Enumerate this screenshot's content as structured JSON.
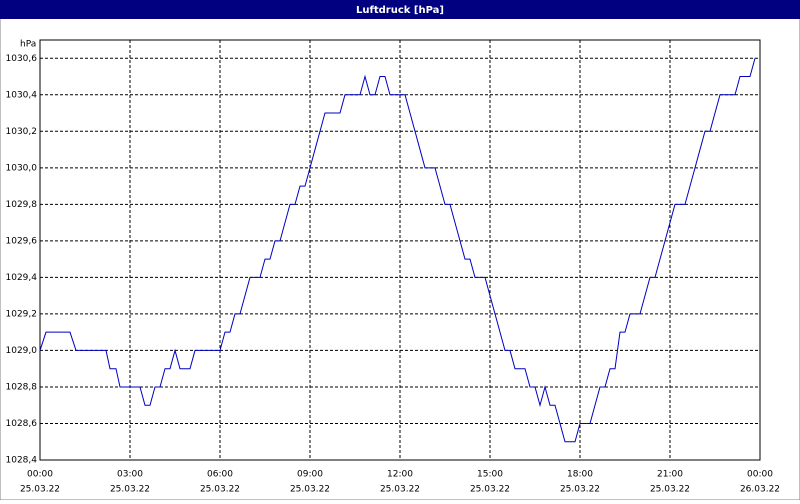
{
  "chart_data": {
    "type": "line",
    "title": "Luftdruck [hPa]",
    "y_unit": "hPa",
    "x": [
      0,
      12,
      60,
      72,
      132,
      140,
      152,
      160,
      200,
      210,
      220,
      230,
      240,
      250,
      260,
      270,
      280,
      300,
      310,
      360,
      370,
      380,
      390,
      400,
      410,
      420,
      440,
      450,
      460,
      470,
      480,
      490,
      500,
      510,
      520,
      530,
      540,
      550,
      560,
      570,
      600,
      610,
      640,
      650,
      660,
      670,
      680,
      690,
      700,
      730,
      740,
      750,
      760,
      770,
      790,
      800,
      810,
      820,
      830,
      840,
      850,
      860,
      870,
      890,
      900,
      910,
      920,
      930,
      940,
      950,
      970,
      980,
      990,
      1000,
      1010,
      1020,
      1030,
      1040,
      1050,
      1070,
      1080,
      1100,
      1110,
      1120,
      1130,
      1140,
      1150,
      1160,
      1170,
      1180,
      1200,
      1210,
      1220,
      1230,
      1240,
      1250,
      1260,
      1270,
      1290,
      1300,
      1310,
      1320,
      1330,
      1340,
      1350,
      1360,
      1390,
      1400,
      1420,
      1430
    ],
    "series": [
      {
        "name": "Luftdruck",
        "color": "#0000c0",
        "values": [
          1029.0,
          1029.1,
          1029.1,
          1029.0,
          1029.0,
          1028.9,
          1028.9,
          1028.8,
          1028.8,
          1028.7,
          1028.7,
          1028.8,
          1028.8,
          1028.9,
          1028.9,
          1029.0,
          1028.9,
          1028.9,
          1029.0,
          1029.0,
          1029.1,
          1029.1,
          1029.2,
          1029.2,
          1029.3,
          1029.4,
          1029.4,
          1029.5,
          1029.5,
          1029.6,
          1029.6,
          1029.7,
          1029.8,
          1029.8,
          1029.9,
          1029.9,
          1030.0,
          1030.1,
          1030.2,
          1030.3,
          1030.3,
          1030.4,
          1030.4,
          1030.5,
          1030.4,
          1030.4,
          1030.5,
          1030.5,
          1030.4,
          1030.4,
          1030.3,
          1030.2,
          1030.1,
          1030.0,
          1030.0,
          1029.9,
          1029.8,
          1029.8,
          1029.7,
          1029.6,
          1029.5,
          1029.5,
          1029.4,
          1029.4,
          1029.3,
          1029.2,
          1029.1,
          1029.0,
          1029.0,
          1028.9,
          1028.9,
          1028.8,
          1028.8,
          1028.7,
          1028.8,
          1028.7,
          1028.7,
          1028.6,
          1028.5,
          1028.5,
          1028.6,
          1028.6,
          1028.7,
          1028.8,
          1028.8,
          1028.9,
          1028.9,
          1029.1,
          1029.1,
          1029.2,
          1029.2,
          1029.3,
          1029.4,
          1029.4,
          1029.5,
          1029.6,
          1029.7,
          1029.8,
          1029.8,
          1029.9,
          1030.0,
          1030.1,
          1030.2,
          1030.2,
          1030.3,
          1030.4,
          1030.4,
          1030.5,
          1030.5,
          1030.6
        ]
      }
    ],
    "xlim": [
      0,
      1440
    ],
    "xticks": [
      {
        "value": 0,
        "label": [
          "00:00",
          "25.03.22"
        ]
      },
      {
        "value": 180,
        "label": [
          "03:00",
          "25.03.22"
        ]
      },
      {
        "value": 360,
        "label": [
          "06:00",
          "25.03.22"
        ]
      },
      {
        "value": 540,
        "label": [
          "09:00",
          "25.03.22"
        ]
      },
      {
        "value": 720,
        "label": [
          "12:00",
          "25.03.22"
        ]
      },
      {
        "value": 900,
        "label": [
          "15:00",
          "25.03.22"
        ]
      },
      {
        "value": 1080,
        "label": [
          "18:00",
          "25.03.22"
        ]
      },
      {
        "value": 1260,
        "label": [
          "21:00",
          "25.03.22"
        ]
      },
      {
        "value": 1440,
        "label": [
          "00:00",
          "26.03.22"
        ]
      }
    ],
    "ylim": [
      1028.4,
      1030.7
    ],
    "yticks": [
      {
        "value": 1028.4,
        "label": "1028,4"
      },
      {
        "value": 1028.6,
        "label": "1028,6"
      },
      {
        "value": 1028.8,
        "label": "1028,8"
      },
      {
        "value": 1029.0,
        "label": "1029,0"
      },
      {
        "value": 1029.2,
        "label": "1029,2"
      },
      {
        "value": 1029.4,
        "label": "1029,4"
      },
      {
        "value": 1029.6,
        "label": "1029,6"
      },
      {
        "value": 1029.8,
        "label": "1029,8"
      },
      {
        "value": 1030.0,
        "label": "1030,0"
      },
      {
        "value": 1030.2,
        "label": "1030,2"
      },
      {
        "value": 1030.4,
        "label": "1030,4"
      },
      {
        "value": 1030.6,
        "label": "1030,6"
      }
    ],
    "grid": true
  }
}
